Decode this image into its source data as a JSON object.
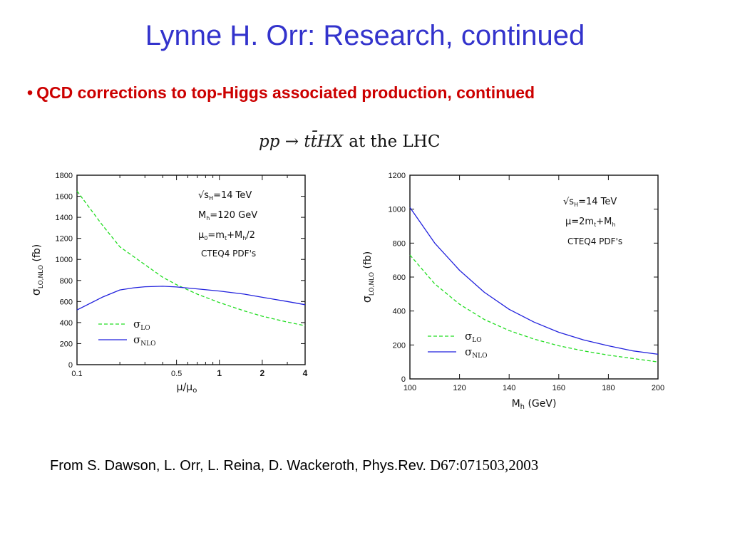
{
  "slide": {
    "title": "Lynne H. Orr: Research, continued",
    "bullet": "QCD corrections to top-Higgs associated production, continued",
    "bullet_symbol": "•",
    "plot_heading": {
      "process": "pp → tt̄HX",
      "suffix": "at the LHC"
    },
    "citation": {
      "text": "From S. Dawson, L. Orr, L. Reina, D. Wackeroth, Phys.Rev.",
      "ref": "D67:071503,2003"
    }
  },
  "colors": {
    "title": "#3333cc",
    "bullet": "#cc0000",
    "lo_line": "#22dd22",
    "nlo_line": "#2222dd"
  },
  "chart_data": [
    {
      "type": "line",
      "x_scale": "log",
      "xlim": [
        0.1,
        4
      ],
      "ylim": [
        0,
        1800
      ],
      "xlabel": "μ/μ₀",
      "ylabel": "σLO,NLO (fb)",
      "x_ticks": [
        {
          "value": 0.1,
          "label": "0.1",
          "bold": false
        },
        {
          "value": 0.5,
          "label": "0.5",
          "bold": false
        },
        {
          "value": 1,
          "label": "1",
          "bold": true
        },
        {
          "value": 2,
          "label": "2",
          "bold": true
        },
        {
          "value": 4,
          "label": "4",
          "bold": true
        }
      ],
      "y_ticks": [
        0,
        200,
        400,
        600,
        800,
        1000,
        1200,
        1400,
        1600,
        1800
      ],
      "annotations": [
        "√sH=14 TeV",
        "Mh=120 GeV",
        "μ0=mt+Mh/2",
        "CTEQ4 PDF's"
      ],
      "grid": false,
      "legend_position": "bottom-left",
      "series": [
        {
          "name": "σLO",
          "style": "dashed",
          "x": [
            0.1,
            0.15,
            0.2,
            0.3,
            0.4,
            0.5,
            0.7,
            1.0,
            1.5,
            2.0,
            3.0,
            4.0
          ],
          "y": [
            1650,
            1330,
            1120,
            950,
            830,
            760,
            670,
            590,
            510,
            460,
            405,
            370
          ]
        },
        {
          "name": "σNLO",
          "style": "solid",
          "x": [
            0.1,
            0.15,
            0.2,
            0.25,
            0.3,
            0.4,
            0.5,
            0.7,
            1.0,
            1.5,
            2.0,
            3.0,
            4.0
          ],
          "y": [
            520,
            640,
            710,
            730,
            740,
            745,
            738,
            720,
            700,
            670,
            640,
            600,
            570
          ]
        }
      ]
    },
    {
      "type": "line",
      "xlim": [
        100,
        200
      ],
      "ylim": [
        0,
        1200
      ],
      "xlabel": "Mh (GeV)",
      "ylabel": "σLO,NLO (fb)",
      "x_ticks": [
        100,
        120,
        140,
        160,
        180,
        200
      ],
      "y_ticks": [
        0,
        200,
        400,
        600,
        800,
        1000,
        1200
      ],
      "annotations": [
        "√sH=14 TeV",
        "μ=2mt+Mh",
        "CTEQ4 PDF's"
      ],
      "grid": false,
      "legend_position": "bottom-left",
      "series": [
        {
          "name": "σLO",
          "style": "dashed",
          "x": [
            100,
            110,
            120,
            130,
            140,
            150,
            160,
            170,
            180,
            190,
            200
          ],
          "y": [
            730,
            560,
            440,
            350,
            285,
            235,
            195,
            165,
            140,
            120,
            100
          ]
        },
        {
          "name": "σNLO",
          "style": "solid",
          "x": [
            100,
            110,
            120,
            130,
            140,
            150,
            160,
            170,
            180,
            190,
            200
          ],
          "y": [
            1010,
            800,
            640,
            510,
            410,
            335,
            275,
            230,
            195,
            165,
            145
          ]
        }
      ]
    }
  ]
}
